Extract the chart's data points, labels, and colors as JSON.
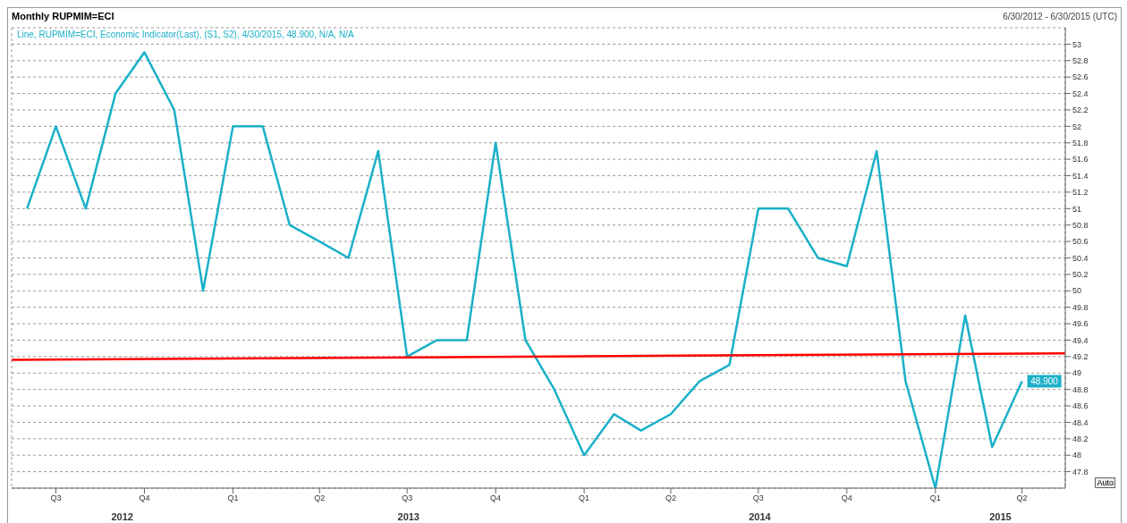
{
  "chart_data": {
    "type": "line",
    "title": "Monthly RUPMIM=ECI",
    "subtitle": "Line, RUPMIM=ECI, Economic Indicator(Last), (S1, S2), 4/30/2015, 48.900, N/A, N/A",
    "annotations": [
      "6/30/2012 - 6/30/2015 (UTC)",
      "Auto",
      "2012",
      "2013",
      "2014",
      "2015"
    ],
    "xlim": [
      "2012-05-16",
      "2015-05-16"
    ],
    "xticks": [
      {
        "value": "2012-07-01",
        "label": "Q3"
      },
      {
        "value": "2012-10-01",
        "label": "Q4"
      },
      {
        "value": "2013-01-01",
        "label": "Q1"
      },
      {
        "value": "2013-04-01",
        "label": "Q2"
      },
      {
        "value": "2013-07-01",
        "label": "Q3"
      },
      {
        "value": "2013-10-01",
        "label": "Q4"
      },
      {
        "value": "2014-01-01",
        "label": "Q1"
      },
      {
        "value": "2014-04-01",
        "label": "Q2"
      },
      {
        "value": "2014-07-01",
        "label": "Q3"
      },
      {
        "value": "2014-10-01",
        "label": "Q4"
      },
      {
        "value": "2015-01-01",
        "label": "Q1"
      },
      {
        "value": "2015-04-01",
        "label": "Q2"
      }
    ],
    "ylim": [
      47.6,
      53.2
    ],
    "yticks": [
      47.8,
      48,
      48.2,
      48.4,
      48.6,
      48.8,
      49,
      49.2,
      49.4,
      49.6,
      49.8,
      50,
      50.2,
      50.4,
      50.6,
      50.8,
      51,
      51.2,
      51.4,
      51.6,
      51.8,
      52,
      52.2,
      52.4,
      52.6,
      52.8,
      53
    ],
    "grid": true,
    "legend": false,
    "marker": "none",
    "line_style": "solid",
    "series": [
      {
        "color": "#1ab0c8",
        "x": [
          "2012-06-01",
          "2012-07-01",
          "2012-08-01",
          "2012-09-01",
          "2012-10-01",
          "2012-11-01",
          "2012-12-01",
          "2013-01-01",
          "2013-02-01",
          "2013-03-01",
          "2013-04-01",
          "2013-05-01",
          "2013-06-01",
          "2013-07-01",
          "2013-08-01",
          "2013-09-01",
          "2013-10-01",
          "2013-11-01",
          "2013-12-01",
          "2014-01-01",
          "2014-02-01",
          "2014-03-01",
          "2014-04-01",
          "2014-05-01",
          "2014-06-01",
          "2014-07-01",
          "2014-08-01",
          "2014-09-01",
          "2014-10-01",
          "2014-11-01",
          "2014-12-01",
          "2015-01-01",
          "2015-02-01",
          "2015-03-01",
          "2015-04-01"
        ],
        "values": [
          51.0,
          52.0,
          51.0,
          52.4,
          52.9,
          52.2,
          50.0,
          52.0,
          52.0,
          50.8,
          50.6,
          50.4,
          51.7,
          49.2,
          49.4,
          49.4,
          51.8,
          49.4,
          48.8,
          48.0,
          48.5,
          48.3,
          48.5,
          48.9,
          49.1,
          51.0,
          51.0,
          50.4,
          50.3,
          51.7,
          48.9,
          47.6,
          49.7,
          48.1,
          48.9
        ],
        "value_labels": [
          null,
          null,
          null,
          null,
          null,
          null,
          null,
          null,
          null,
          null,
          null,
          null,
          null,
          null,
          null,
          null,
          null,
          null,
          null,
          null,
          null,
          null,
          null,
          null,
          null,
          null,
          null,
          null,
          null,
          null,
          null,
          null,
          null,
          null,
          "48.900"
        ]
      },
      {
        "color": "#ff0000",
        "x": [
          "2012-05-16",
          "2015-05-16"
        ],
        "values": [
          49.16,
          49.24
        ]
      }
    ]
  }
}
